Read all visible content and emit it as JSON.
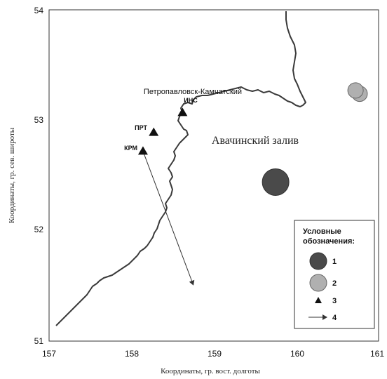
{
  "map": {
    "x_label": "Координаты, гр. вост. долготы",
    "y_label": "Координаты, гр. сев. широты",
    "x_ticks": [
      "157",
      "158",
      "159",
      "160",
      "161"
    ],
    "y_ticks": [
      "51",
      "52",
      "53",
      "54"
    ],
    "city_label": "Петропавловск-Камчатский",
    "bay_label": "Авачинский залив",
    "stations": [
      {
        "code": "ИНС",
        "lon": 158.62,
        "lat": 53.07
      },
      {
        "code": "ПРТ",
        "lon": 158.27,
        "lat": 52.89
      },
      {
        "code": "КРМ",
        "lon": 158.14,
        "lat": 52.72
      }
    ],
    "sources_type1": [
      {
        "lon": 159.75,
        "lat": 52.44
      }
    ],
    "sources_type2": [
      {
        "lon": 160.77,
        "lat": 53.24
      },
      {
        "lon": 160.72,
        "lat": 53.27
      }
    ],
    "vector": {
      "from_lon": 158.14,
      "from_lat": 52.72,
      "to_lon": 158.75,
      "to_lat": 51.51
    },
    "colors": {
      "type1_fill": "#4a4a4a",
      "type2_fill": "#b0b0b0",
      "coast": "#3a3a3a"
    }
  },
  "legend": {
    "title_line1": "Условные",
    "title_line2": "обозначения:",
    "items": [
      {
        "number": "1",
        "symbol": "dark-circle"
      },
      {
        "number": "2",
        "symbol": "light-circle"
      },
      {
        "number": "3",
        "symbol": "triangle"
      },
      {
        "number": "4",
        "symbol": "arrow"
      }
    ]
  }
}
